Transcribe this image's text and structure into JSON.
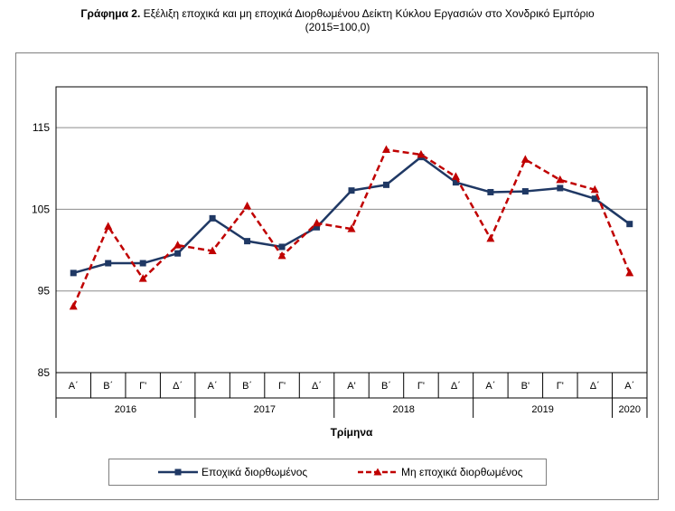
{
  "title": {
    "bold": "Γράφημα 2.",
    "rest": " Εξέλιξη εποχικά και μη εποχικά Διορθωμένου Δείκτη Κύκλου Εργασιών στο Χονδρικό Εμπόριο",
    "line2": "(2015=100,0)"
  },
  "chart_data": {
    "type": "line",
    "xlabel": "Τρίμηνα",
    "ylabel": "",
    "ylim": [
      85,
      120
    ],
    "yticks": [
      85,
      95,
      105,
      115
    ],
    "grid": true,
    "legend_position": "bottom",
    "categories": [
      "Α΄",
      "Β΄",
      "Γ'",
      "Δ΄",
      "Α΄",
      "Β΄",
      "Γ'",
      "Δ΄",
      "Α'",
      "Β΄",
      "Γ'",
      "Δ΄",
      "Α΄",
      "Β'",
      "Γ'",
      "Δ΄",
      "Α΄"
    ],
    "years": [
      {
        "label": "2016",
        "count": 4
      },
      {
        "label": "2017",
        "count": 4
      },
      {
        "label": "2018",
        "count": 4
      },
      {
        "label": "2019",
        "count": 4
      },
      {
        "label": "2020",
        "count": 1
      }
    ],
    "series": [
      {
        "name": "Εποχικά διορθωμένος",
        "color": "#1f3864",
        "style": "solid",
        "marker": "square",
        "values": [
          97.2,
          98.4,
          98.4,
          99.6,
          103.9,
          101.1,
          100.4,
          102.8,
          107.3,
          108.0,
          111.4,
          108.3,
          107.1,
          107.2,
          107.6,
          106.3,
          103.2
        ]
      },
      {
        "name": "Μη εποχικά διορθωμένος",
        "color": "#c00000",
        "style": "dashed",
        "marker": "triangle",
        "values": [
          93.1,
          102.9,
          96.5,
          100.6,
          99.9,
          105.4,
          99.3,
          103.3,
          102.6,
          112.3,
          111.7,
          109.0,
          101.4,
          111.1,
          108.6,
          107.4,
          97.2
        ]
      }
    ]
  }
}
